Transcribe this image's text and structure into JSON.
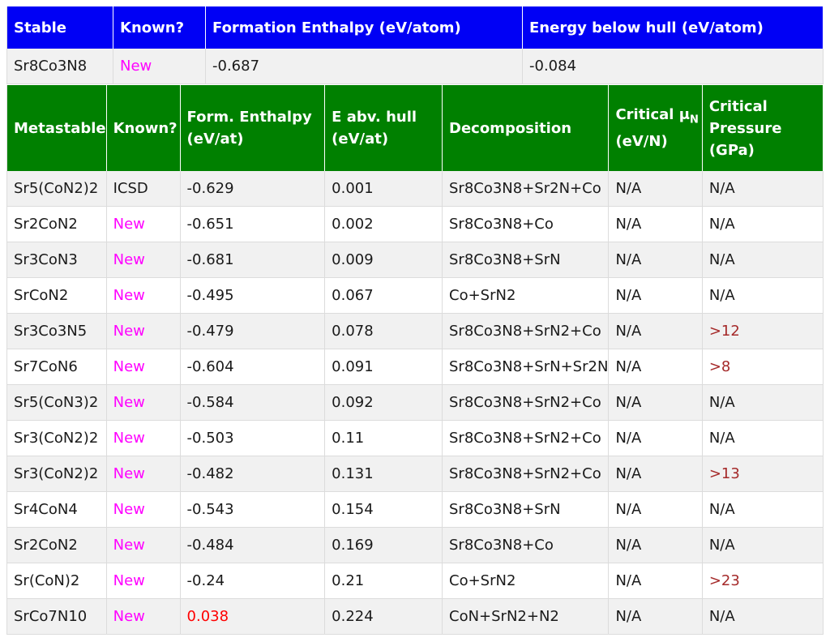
{
  "stable": {
    "headers": [
      "Stable",
      "Known?",
      "Formation Enthalpy (eV/atom)",
      "Energy below hull (eV/atom)"
    ],
    "row": [
      "Sr8Co3N8",
      "New",
      "-0.687",
      "-0.084"
    ]
  },
  "metastable": {
    "headers": {
      "name": "Metastable",
      "known": "Known?",
      "form_line1": "Form. Enthalpy",
      "form_line2": "(eV/at)",
      "ehull_line1": "E abv. hull",
      "ehull_line2": "(eV/at)",
      "decomp": "Decomposition",
      "mu_line1": "Critical μ",
      "mu_sub": "N",
      "mu_line2": "(eV/N)",
      "press_line1": "Critical",
      "press_line2": "Pressure",
      "press_line3": "(GPa)"
    },
    "rows": [
      [
        "Sr5(CoN2)2",
        "ICSD",
        "-0.629",
        "0.001",
        "Sr8Co3N8+Sr2N+Co",
        "N/A",
        "N/A"
      ],
      [
        "Sr2CoN2",
        "New",
        "-0.651",
        "0.002",
        "Sr8Co3N8+Co",
        "N/A",
        "N/A"
      ],
      [
        "Sr3CoN3",
        "New",
        "-0.681",
        "0.009",
        "Sr8Co3N8+SrN",
        "N/A",
        "N/A"
      ],
      [
        "SrCoN2",
        "New",
        "-0.495",
        "0.067",
        "Co+SrN2",
        "N/A",
        "N/A"
      ],
      [
        "Sr3Co3N5",
        "New",
        "-0.479",
        "0.078",
        "Sr8Co3N8+SrN2+Co",
        "N/A",
        ">12"
      ],
      [
        "Sr7CoN6",
        "New",
        "-0.604",
        "0.091",
        "Sr8Co3N8+SrN+Sr2N",
        "N/A",
        ">8"
      ],
      [
        "Sr5(CoN3)2",
        "New",
        "-0.584",
        "0.092",
        "Sr8Co3N8+SrN2+Co",
        "N/A",
        "N/A"
      ],
      [
        "Sr3(CoN2)2",
        "New",
        "-0.503",
        "0.11",
        "Sr8Co3N8+SrN2+Co",
        "N/A",
        "N/A"
      ],
      [
        "Sr3(CoN2)2",
        "New",
        "-0.482",
        "0.131",
        "Sr8Co3N8+SrN2+Co",
        "N/A",
        ">13"
      ],
      [
        "Sr4CoN4",
        "New",
        "-0.543",
        "0.154",
        "Sr8Co3N8+SrN",
        "N/A",
        "N/A"
      ],
      [
        "Sr2CoN2",
        "New",
        "-0.484",
        "0.169",
        "Sr8Co3N8+Co",
        "N/A",
        "N/A"
      ],
      [
        "Sr(CoN)2",
        "New",
        "-0.24",
        "0.21",
        "Co+SrN2",
        "N/A",
        ">23"
      ],
      [
        "SrCo7N10",
        "New",
        "0.038",
        "0.224",
        "CoN+SrN2+N2",
        "N/A",
        "N/A"
      ]
    ]
  },
  "colors": {
    "stable_header": "#0000f5",
    "metastable_header": "#008000",
    "new_text": "#ff00ff",
    "positive_enthalpy": "#ff0000",
    "pressure_value": "#a52a2a"
  }
}
